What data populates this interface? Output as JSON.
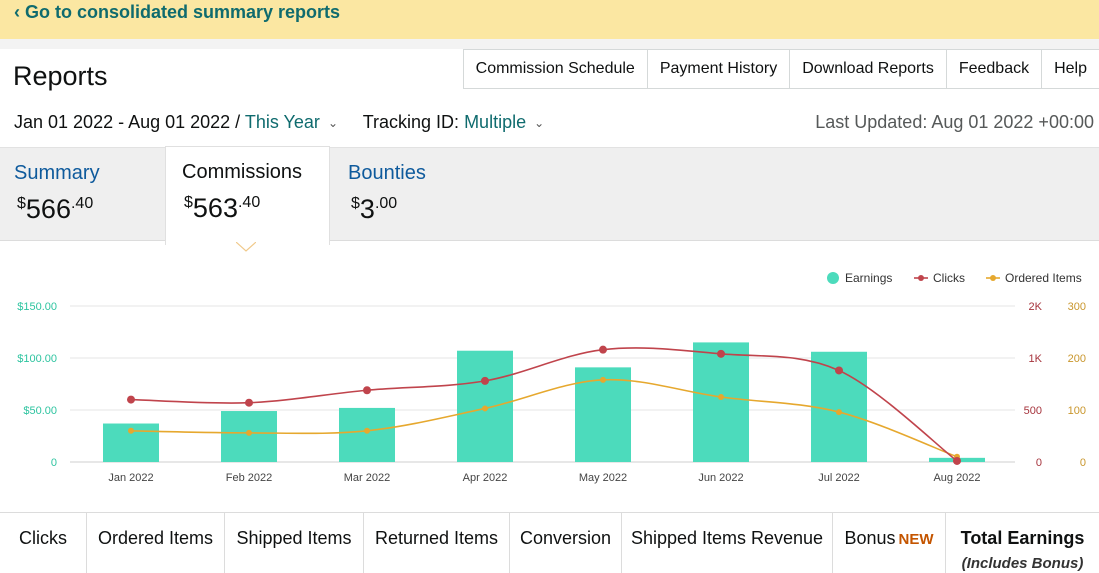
{
  "banner": {
    "link": "‹ Go to consolidated summary reports"
  },
  "header": {
    "title": "Reports",
    "nav": [
      "Commission Schedule",
      "Payment History",
      "Download Reports",
      "Feedback",
      "Help"
    ],
    "date_range": "Jan 01 2022 - Aug 01 2022 /",
    "period": "This Year",
    "tracking_label": "Tracking ID:",
    "tracking_value": "Multiple",
    "last_updated": "Last Updated: Aug 01 2022 +00:00"
  },
  "summary_tabs": [
    {
      "label": "Summary",
      "currency": "$",
      "whole": "566",
      "cents": ".40"
    },
    {
      "label": "Commissions",
      "currency": "$",
      "whole": "563",
      "cents": ".40"
    },
    {
      "label": "Bounties",
      "currency": "$",
      "whole": "3",
      "cents": ".00"
    }
  ],
  "chart_data": {
    "type": "bar",
    "categories": [
      "Jan 2022",
      "Feb 2022",
      "Mar 2022",
      "Apr 2022",
      "May 2022",
      "Jun 2022",
      "Jul 2022",
      "Aug 2022"
    ],
    "series": [
      {
        "name": "Earnings",
        "type": "bar",
        "axis": "left",
        "color": "#4cdbbc",
        "values": [
          37,
          49,
          52,
          107,
          91,
          115,
          106,
          4
        ]
      },
      {
        "name": "Clicks",
        "type": "line",
        "axis": "right1",
        "color": "#c0444c",
        "values": [
          600,
          570,
          690,
          780,
          1080,
          1040,
          880,
          10
        ]
      },
      {
        "name": "Ordered Items",
        "type": "line",
        "axis": "right2",
        "color": "#e6a82e",
        "values": [
          60,
          56,
          60,
          103,
          158,
          125,
          96,
          10
        ]
      }
    ],
    "y_left": {
      "ticks": [
        "$150.00",
        "$100.00",
        "$50.00",
        "0"
      ],
      "range": [
        0,
        150
      ],
      "color": "#2ec4a0"
    },
    "y_right1": {
      "ticks": [
        "2K",
        "1K",
        "500",
        "0"
      ],
      "range": [
        0,
        1500
      ],
      "color": "#a6343d"
    },
    "y_right2": {
      "ticks": [
        "300",
        "200",
        "100",
        "0"
      ],
      "range": [
        0,
        300
      ],
      "color": "#c9962c"
    },
    "legend_position": "top-right",
    "grid": true
  },
  "bottom_tabs": [
    {
      "label": "Clicks"
    },
    {
      "label": "Ordered Items"
    },
    {
      "label": "Shipped Items"
    },
    {
      "label": "Returned Items"
    },
    {
      "label": "Conversion"
    },
    {
      "label": "Shipped Items Revenue"
    },
    {
      "label": "Bonus",
      "badge": "NEW"
    },
    {
      "label": "Total Earnings",
      "sub": "(Includes Bonus)"
    }
  ]
}
